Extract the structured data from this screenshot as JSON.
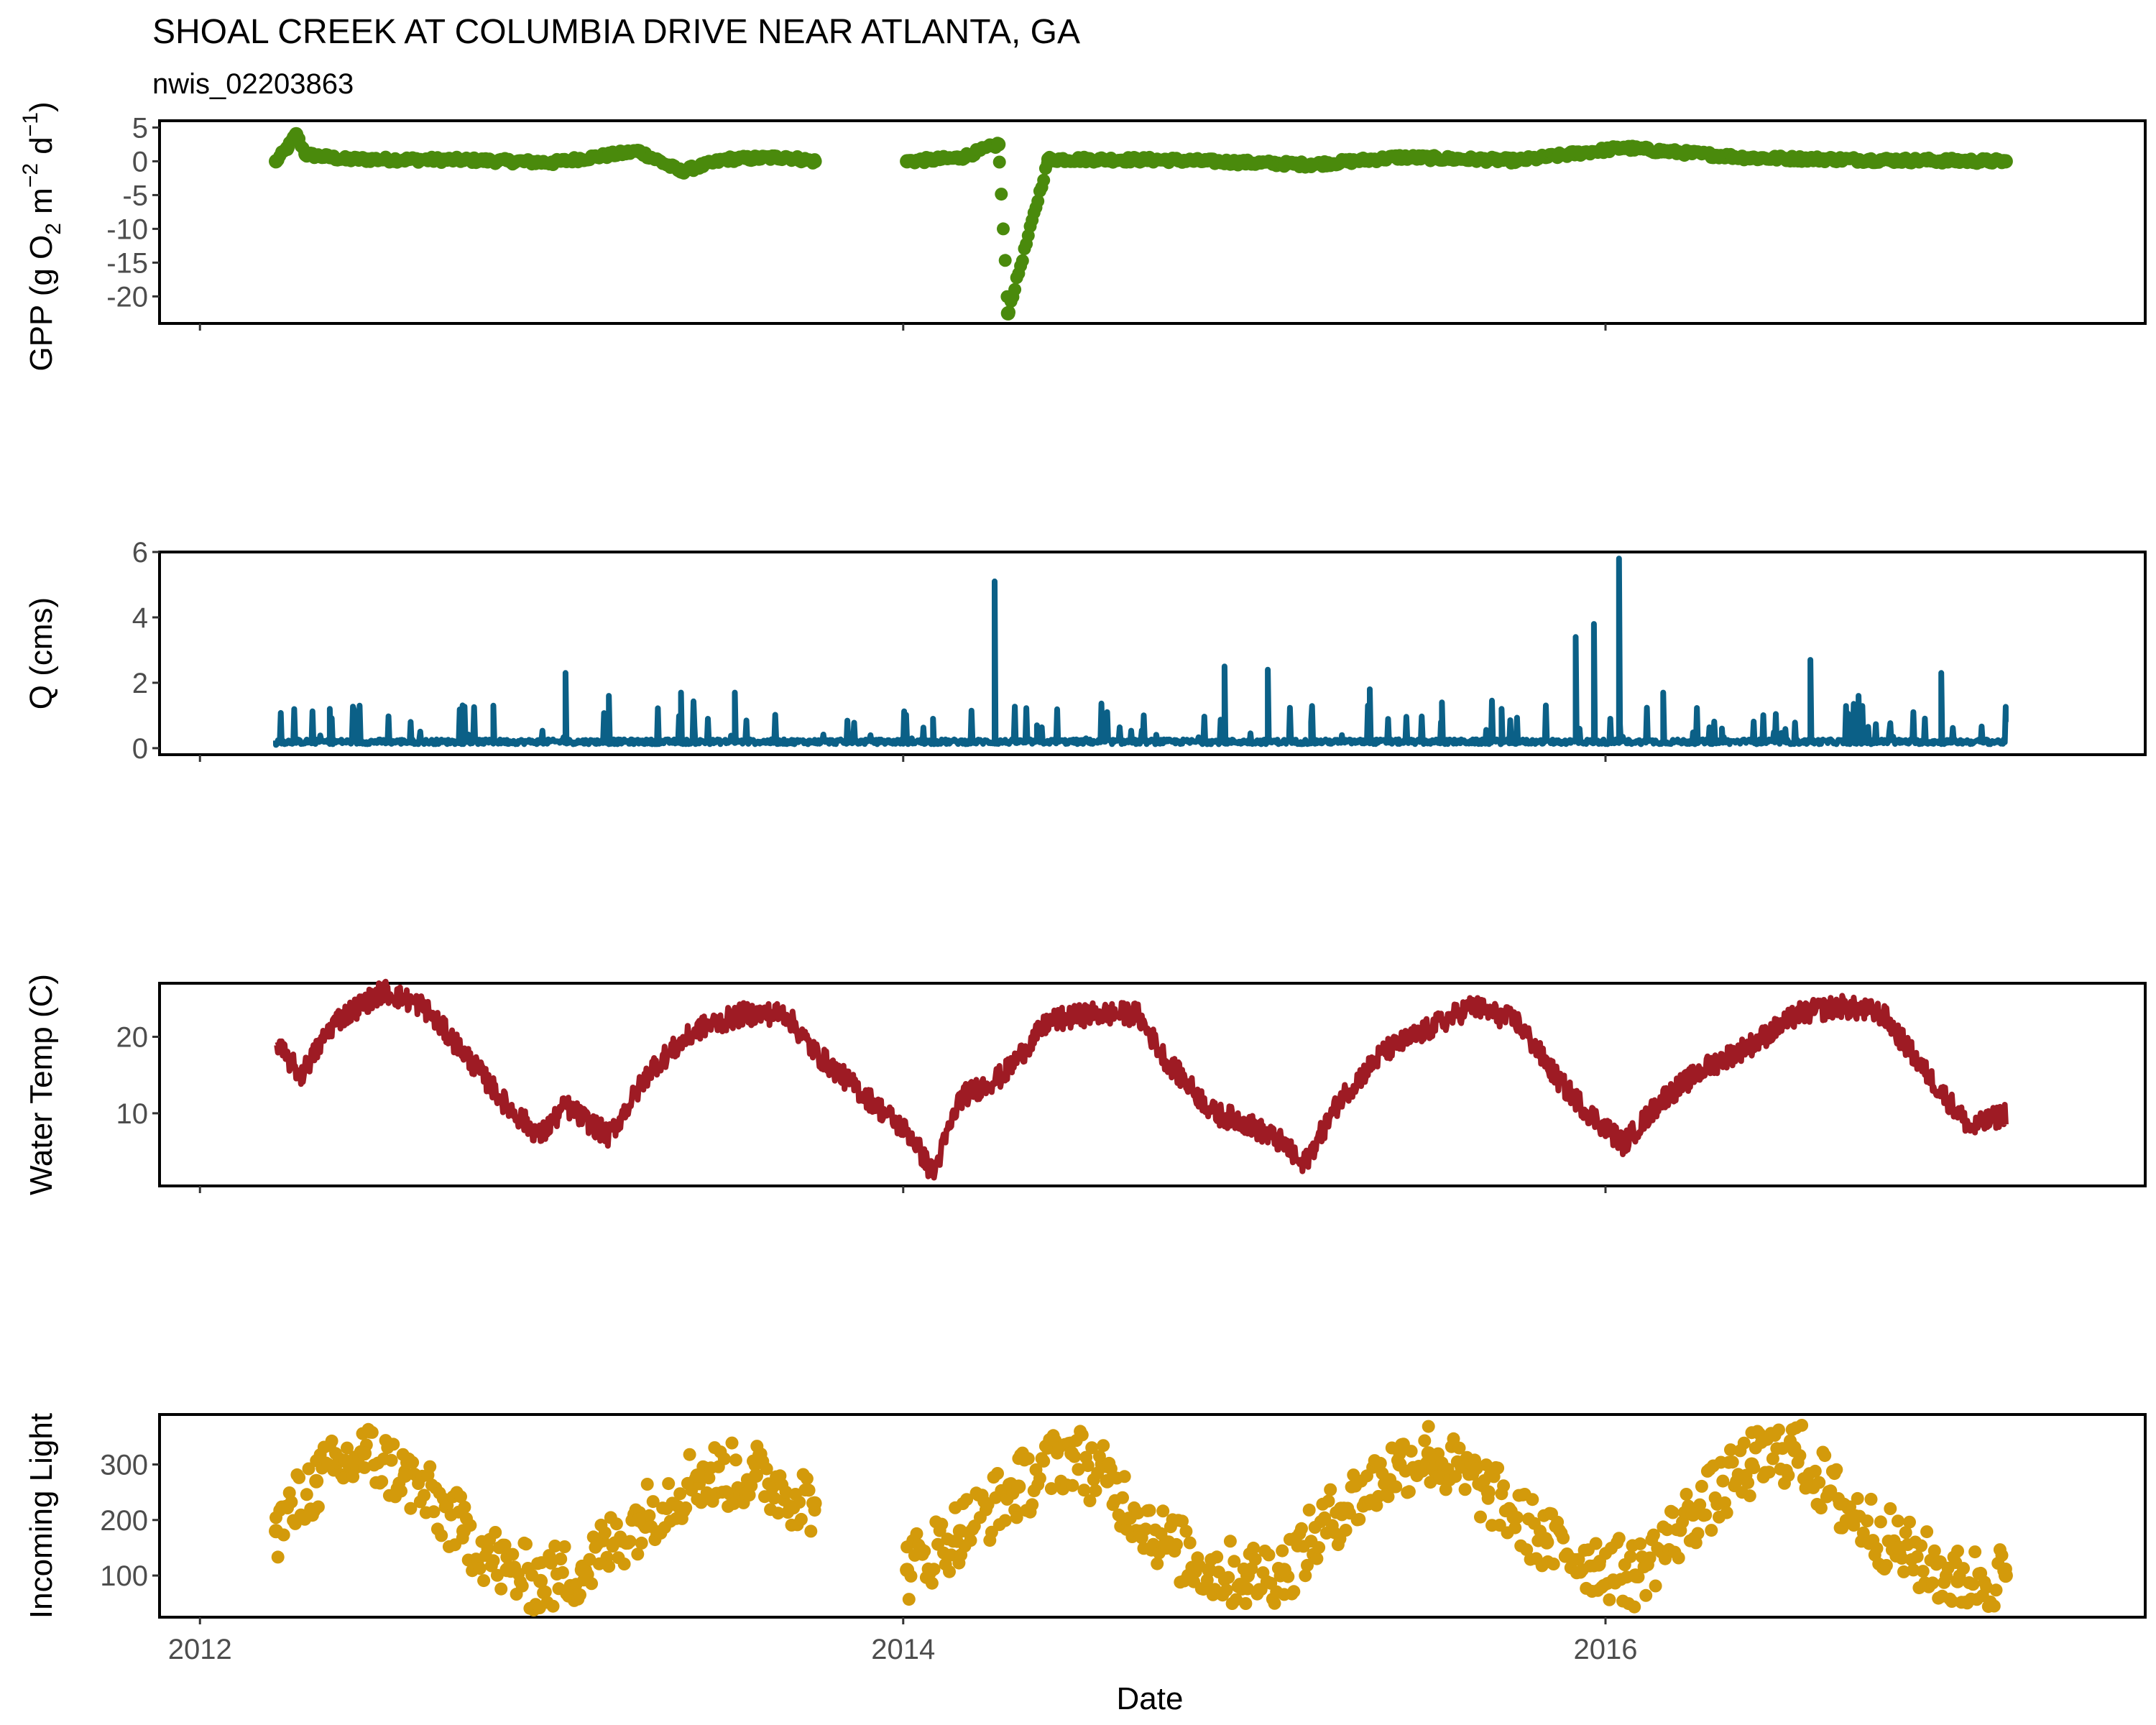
{
  "title": "SHOAL CREEK AT COLUMBIA DRIVE NEAR ATLANTA, GA",
  "subtitle": "nwis_02203863",
  "xlabel": "Date",
  "x_ticks": [
    "2012",
    "2014",
    "2016"
  ],
  "colors": {
    "gpp": "#4a8a0c",
    "q": "#0b6087",
    "temp": "#9e1b24",
    "light": "#d39a0b"
  },
  "chart_data": [
    {
      "type": "scatter",
      "panel": "gpp",
      "ylabel": "GPP (g  O2 m-2 d-1)",
      "ylabel_parts": {
        "a": "GPP (g  O",
        "s1": "2",
        "b": " m",
        "s2": "−2",
        "c": " d",
        "s3": "−1",
        "d": ")"
      },
      "y_ticks": [
        "5",
        "0",
        "-5",
        "-10",
        "-15",
        "-20"
      ],
      "ylim": [
        -24,
        6
      ],
      "x_range": [
        "2012-03-20",
        "2017-02-20"
      ],
      "gap": [
        "2013-10-01",
        "2014-01-05"
      ],
      "series": [
        {
          "x": [
            "2012-03-20",
            "2012-04-01",
            "2012-04-10",
            "2012-04-20",
            "2012-06-01",
            "2012-10-01",
            "2013-01-01",
            "2013-04-01",
            "2013-05-15",
            "2013-07-01",
            "2013-09-01",
            "2013-10-01",
            "2014-01-05",
            "2014-03-01",
            "2014-04-10",
            "2014-04-20",
            "2014-06-01",
            "2014-10-01",
            "2015-03-01",
            "2015-06-01",
            "2015-10-01",
            "2016-01-20",
            "2016-03-01",
            "2016-06-01",
            "2016-10-01",
            "2017-02-20"
          ],
          "y": [
            0,
            2,
            4,
            1,
            0.3,
            0.2,
            -0.2,
            1.5,
            -1.5,
            0.3,
            0.6,
            0,
            0,
            0.5,
            2.5,
            -22.5,
            0.3,
            0.2,
            -0.5,
            0.6,
            0.1,
            2,
            1.5,
            0.5,
            0.2,
            0
          ]
        }
      ]
    },
    {
      "type": "line",
      "panel": "q",
      "ylabel": "Q (cms)",
      "y_ticks": [
        "6",
        "4",
        "2",
        "0"
      ],
      "ylim": [
        -0.2,
        6
      ],
      "x_range": [
        "2012-03-20",
        "2017-02-20"
      ],
      "series": [
        {
          "x": [
            "2012-03-20",
            "2012-05-15",
            "2012-06-15",
            "2012-09-15",
            "2012-11-01",
            "2013-01-15",
            "2013-03-01",
            "2013-05-15",
            "2013-07-10",
            "2013-09-01",
            "2014-01-10",
            "2014-02-01",
            "2014-04-06",
            "2014-05-20",
            "2014-07-10",
            "2014-10-01",
            "2014-12-01",
            "2015-01-15",
            "2015-03-01",
            "2015-05-01",
            "2015-07-15",
            "2015-09-15",
            "2015-12-01",
            "2015-12-20",
            "2016-01-15",
            "2016-03-01",
            "2016-05-01",
            "2016-08-01",
            "2016-09-20",
            "2016-12-15",
            "2017-02-20"
          ],
          "y": [
            0.1,
            1.2,
            1.3,
            0.2,
            1.3,
            2.3,
            1.6,
            1.7,
            1.7,
            0.2,
            0.3,
            0.9,
            5.1,
            0.7,
            0.3,
            0.2,
            2.5,
            2.4,
            0.8,
            1.8,
            1.4,
            1.2,
            3.4,
            3.8,
            5.8,
            1.7,
            0.6,
            2.7,
            1.6,
            2.3,
            0.8
          ]
        }
      ]
    },
    {
      "type": "line",
      "panel": "temp",
      "ylabel": "Water Temp (C)",
      "y_ticks": [
        "20",
        "10"
      ],
      "ylim": [
        0.5,
        27
      ],
      "x_range": [
        "2012-03-20",
        "2017-02-20"
      ],
      "series": [
        {
          "x": [
            "2012-03-20",
            "2012-04-15",
            "2012-05-20",
            "2012-07-10",
            "2012-08-20",
            "2012-10-01",
            "2012-11-15",
            "2012-12-20",
            "2013-01-15",
            "2013-03-01",
            "2013-04-15",
            "2013-06-01",
            "2013-07-20",
            "2013-09-01",
            "2013-10-01",
            "2014-01-10",
            "2014-02-01",
            "2014-03-01",
            "2014-04-15",
            "2014-06-01",
            "2014-07-15",
            "2014-09-01",
            "2014-10-01",
            "2014-11-20",
            "2014-12-20",
            "2015-02-01",
            "2015-02-20",
            "2015-04-01",
            "2015-05-15",
            "2015-07-01",
            "2015-08-15",
            "2015-10-01",
            "2015-11-15",
            "2015-12-15",
            "2016-01-20",
            "2016-03-01",
            "2016-04-15",
            "2016-06-01",
            "2016-07-20",
            "2016-09-01",
            "2016-10-15",
            "2016-12-01",
            "2017-01-15",
            "2017-02-20"
          ],
          "y": [
            19,
            15,
            22,
            26,
            24,
            18,
            11,
            7,
            11,
            7,
            16,
            21,
            23,
            23,
            18,
            7,
            2,
            12,
            15,
            22,
            23,
            23,
            17,
            10,
            9,
            6,
            3,
            12,
            18,
            21,
            24,
            22,
            14,
            10,
            6,
            12,
            16,
            19,
            23,
            24,
            23,
            15,
            8,
            10
          ]
        }
      ]
    },
    {
      "type": "scatter",
      "panel": "light",
      "ylabel": "Incoming Light",
      "y_ticks": [
        "300",
        "200",
        "100"
      ],
      "ylim": [
        25,
        390
      ],
      "x_range": [
        "2012-03-20",
        "2017-02-20"
      ],
      "gap": [
        "2013-10-01",
        "2014-01-05"
      ],
      "series": [
        {
          "x": [
            "2012-03-20",
            "2012-05-01",
            "2012-06-20",
            "2012-08-01",
            "2012-10-01",
            "2012-11-15",
            "2012-12-20",
            "2013-02-01",
            "2013-04-01",
            "2013-06-01",
            "2013-08-01",
            "2013-10-01",
            "2014-01-05",
            "2014-03-01",
            "2014-05-01",
            "2014-06-25",
            "2014-08-01",
            "2014-10-01",
            "2014-11-15",
            "2014-12-25",
            "2015-02-01",
            "2015-04-01",
            "2015-06-01",
            "2015-07-01",
            "2015-09-01",
            "2015-11-01",
            "2015-12-25",
            "2016-02-01",
            "2016-04-01",
            "2016-06-01",
            "2016-07-15",
            "2016-09-01",
            "2016-11-01",
            "2017-01-01",
            "2017-02-20"
          ],
          "y": [
            180,
            270,
            320,
            280,
            180,
            110,
            90,
            110,
            200,
            280,
            280,
            230,
            110,
            180,
            260,
            320,
            270,
            160,
            110,
            100,
            110,
            220,
            300,
            320,
            250,
            160,
            120,
            100,
            210,
            300,
            330,
            230,
            150,
            90,
            100
          ]
        }
      ]
    }
  ]
}
